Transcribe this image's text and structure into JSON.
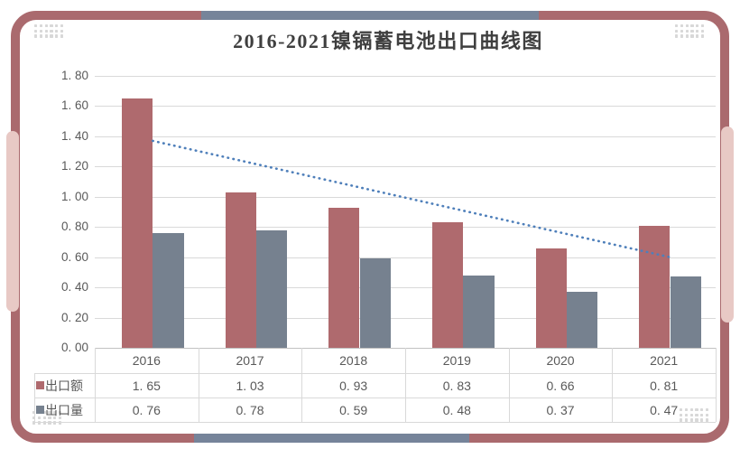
{
  "chart_data": {
    "type": "bar",
    "title": "2016-2021镍镉蓄电池出口曲线图",
    "categories": [
      "2016",
      "2017",
      "2018",
      "2019",
      "2020",
      "2021"
    ],
    "series": [
      {
        "name": "出口额",
        "values": [
          1.65,
          1.03,
          0.93,
          0.83,
          0.66,
          0.81
        ],
        "display_values": [
          "1. 65",
          "1. 03",
          "0. 93",
          "0. 83",
          "0. 66",
          "0. 81"
        ],
        "color": "#af6a6e"
      },
      {
        "name": "出口量",
        "values": [
          0.76,
          0.78,
          0.59,
          0.48,
          0.37,
          0.47
        ],
        "display_values": [
          "0. 76",
          "0. 78",
          "0. 59",
          "0. 48",
          "0. 37",
          "0. 47"
        ],
        "color": "#76818f"
      }
    ],
    "trendline": {
      "series": "出口额",
      "type": "linear",
      "start_value": 1.37,
      "end_value": 0.6,
      "style": "dotted",
      "color": "#4e7fba"
    },
    "ylim": [
      0,
      1.8
    ],
    "ytick_step": 0.2,
    "ytick_labels": [
      "1. 80",
      "1. 60",
      "1. 40",
      "1. 20",
      "1. 00",
      "0. 80",
      "0. 60",
      "0. 40",
      "0. 20",
      "0. 00"
    ],
    "grid": true,
    "legend_position": "data-table-left"
  },
  "colors": {
    "frame_red": "#aa6a6e",
    "accent_pink": "#e8c9c5",
    "accent_blue": "#76849a",
    "gridline": "#d9d9d9",
    "axis_line": "#c2c2c2",
    "table_line": "#d9d9d9",
    "text": "#595959",
    "title_text": "#3f3f3f",
    "dots": "#d8d8d8"
  }
}
